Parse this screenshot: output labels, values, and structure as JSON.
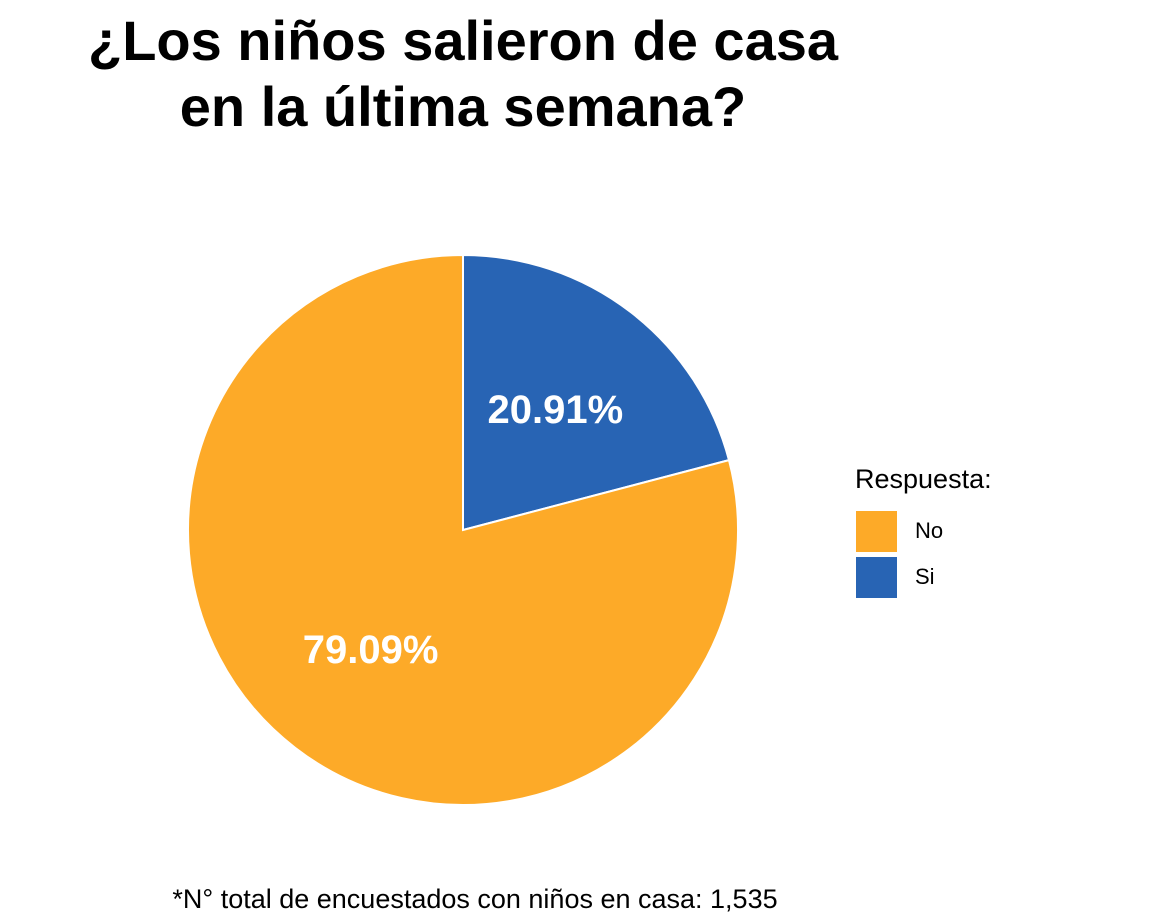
{
  "chart_data": {
    "type": "pie",
    "title_lines": [
      "¿Los niños salieron de casa",
      "en la última semana?"
    ],
    "slices": [
      {
        "name": "No",
        "value": 79.09,
        "label": "79.09%",
        "color": "#FDAA28"
      },
      {
        "name": "Si",
        "value": 20.91,
        "label": "20.91%",
        "color": "#2864B4"
      }
    ],
    "legend": {
      "title": "Respuesta:",
      "placement": "right",
      "entries": [
        "No",
        "Si"
      ]
    },
    "caption": "*N° total de encuestados con niños en casa: 1,535"
  }
}
